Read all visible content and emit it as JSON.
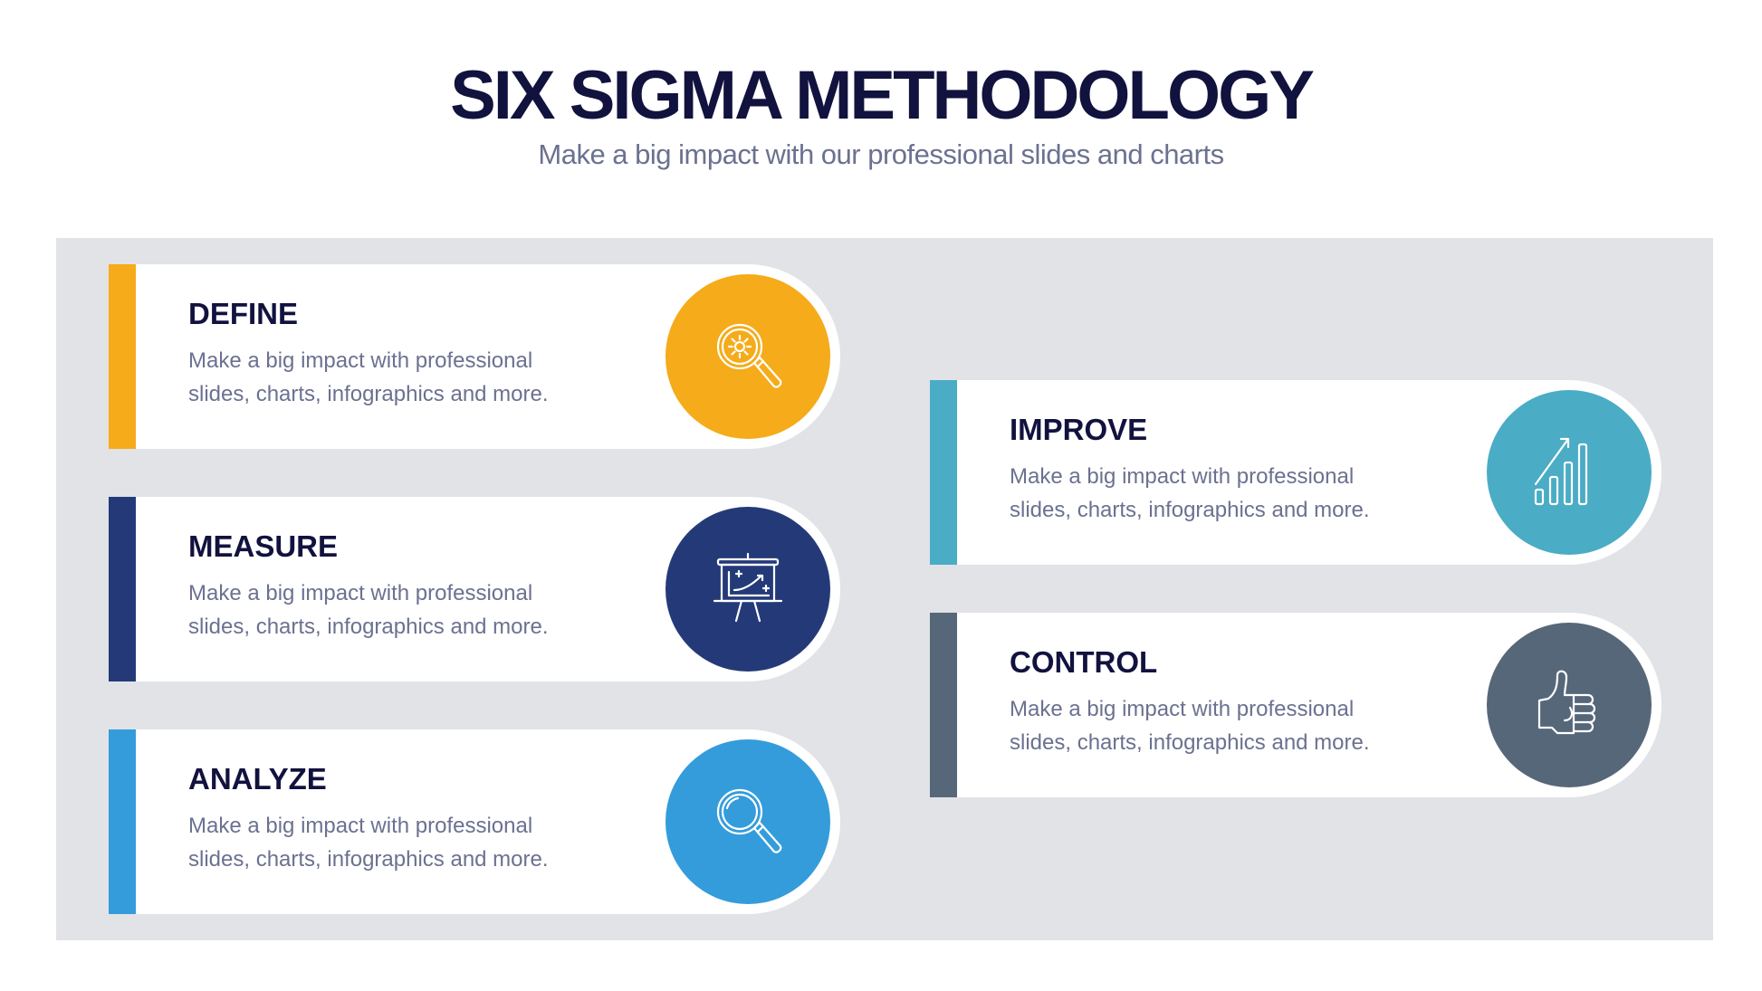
{
  "header": {
    "title": "SIX SIGMA METHODOLOGY",
    "subtitle": "Make a big impact with our professional slides and charts"
  },
  "steps": [
    {
      "title": "DEFINE",
      "line1": "Make a big impact with professional",
      "line2": "slides, charts, infographics and more.",
      "color": "#f5ab1a",
      "icon": "magnifier-gear-icon"
    },
    {
      "title": "MEASURE",
      "line1": "Make a big impact with professional",
      "line2": "slides, charts, infographics and more.",
      "color": "#243a78",
      "icon": "presentation-board-icon"
    },
    {
      "title": "ANALYZE",
      "line1": "Make a big impact with professional",
      "line2": "slides, charts, infographics and more.",
      "color": "#349cdb",
      "icon": "magnifier-icon"
    },
    {
      "title": "IMPROVE",
      "line1": "Make a big impact with professional",
      "line2": "slides, charts, infographics and more.",
      "color": "#4aacc5",
      "icon": "growth-chart-icon"
    },
    {
      "title": "CONTROL",
      "line1": "Make a big impact with professional",
      "line2": "slides, charts, infographics and more.",
      "color": "#566779",
      "icon": "thumbs-up-icon"
    }
  ]
}
